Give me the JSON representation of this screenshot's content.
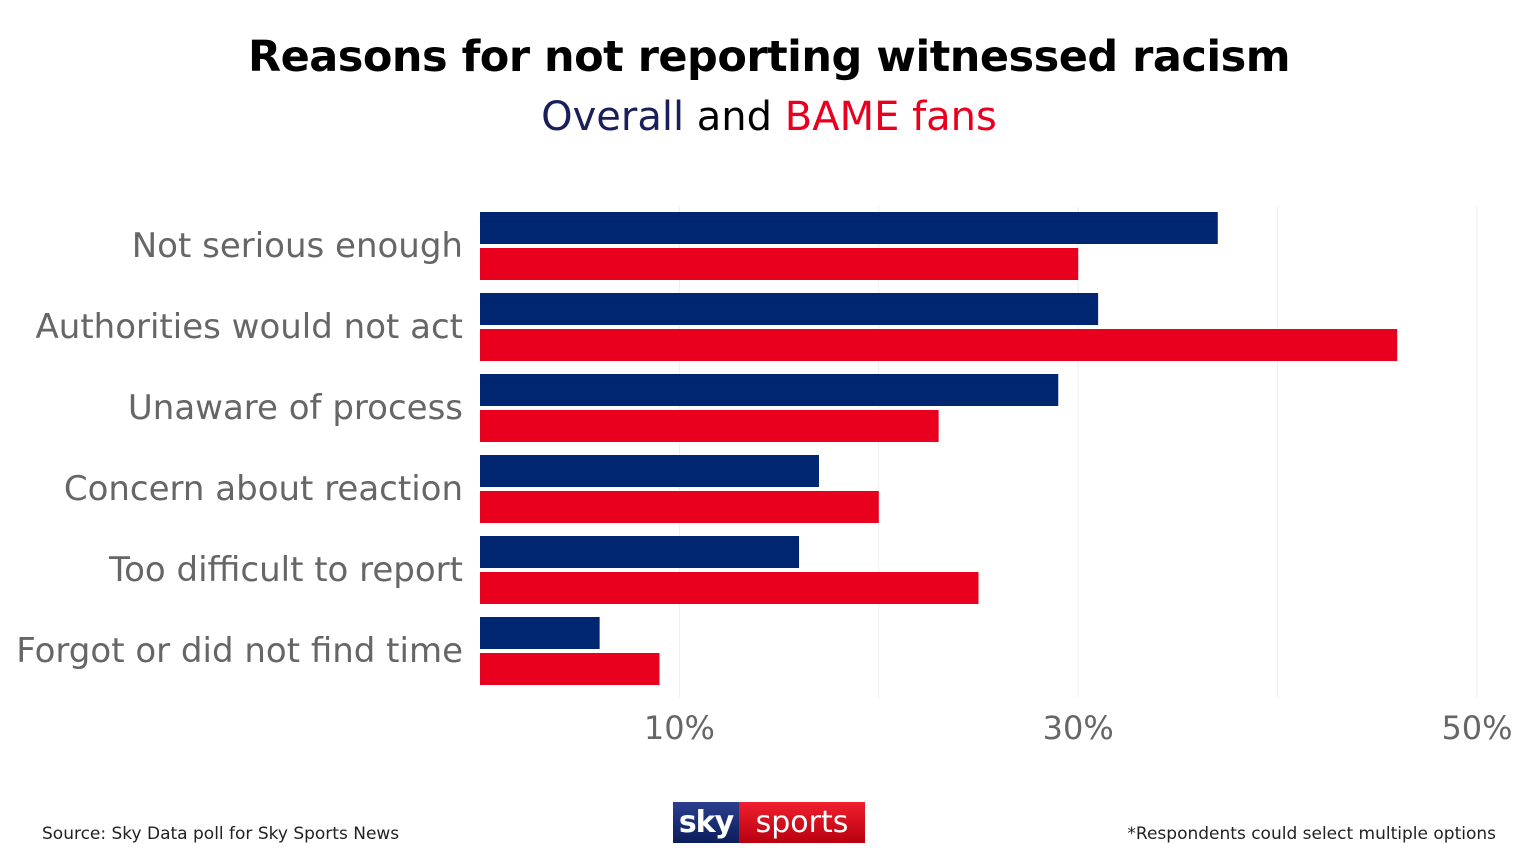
{
  "chart_data": {
    "type": "bar",
    "orientation": "horizontal",
    "title": "Reasons for not reporting witnessed racism",
    "subtitle_parts": {
      "overall": "Overall",
      "and": " and ",
      "bame": "BAME fans"
    },
    "categories": [
      "Not serious enough",
      "Authorities would not act",
      "Unaware of process",
      "Concern about reaction",
      "Too difficult to report",
      "Forgot or did not find time"
    ],
    "series": [
      {
        "name": "Overall",
        "color": "#002672",
        "values": [
          37,
          31,
          29,
          17,
          16,
          6
        ]
      },
      {
        "name": "BAME fans",
        "color": "#e8001e",
        "values": [
          30,
          46,
          23,
          20,
          25,
          9
        ]
      }
    ],
    "xlim": [
      0,
      50
    ],
    "xticks": [
      10,
      30,
      50
    ],
    "xtick_labels": [
      "10%",
      "30%",
      "50%"
    ],
    "grid": true
  },
  "footer": {
    "source": "Source: Sky Data poll for Sky Sports News",
    "footnote": "*Respondents could select multiple options",
    "logo_sky": "sky",
    "logo_sports": "sports"
  }
}
